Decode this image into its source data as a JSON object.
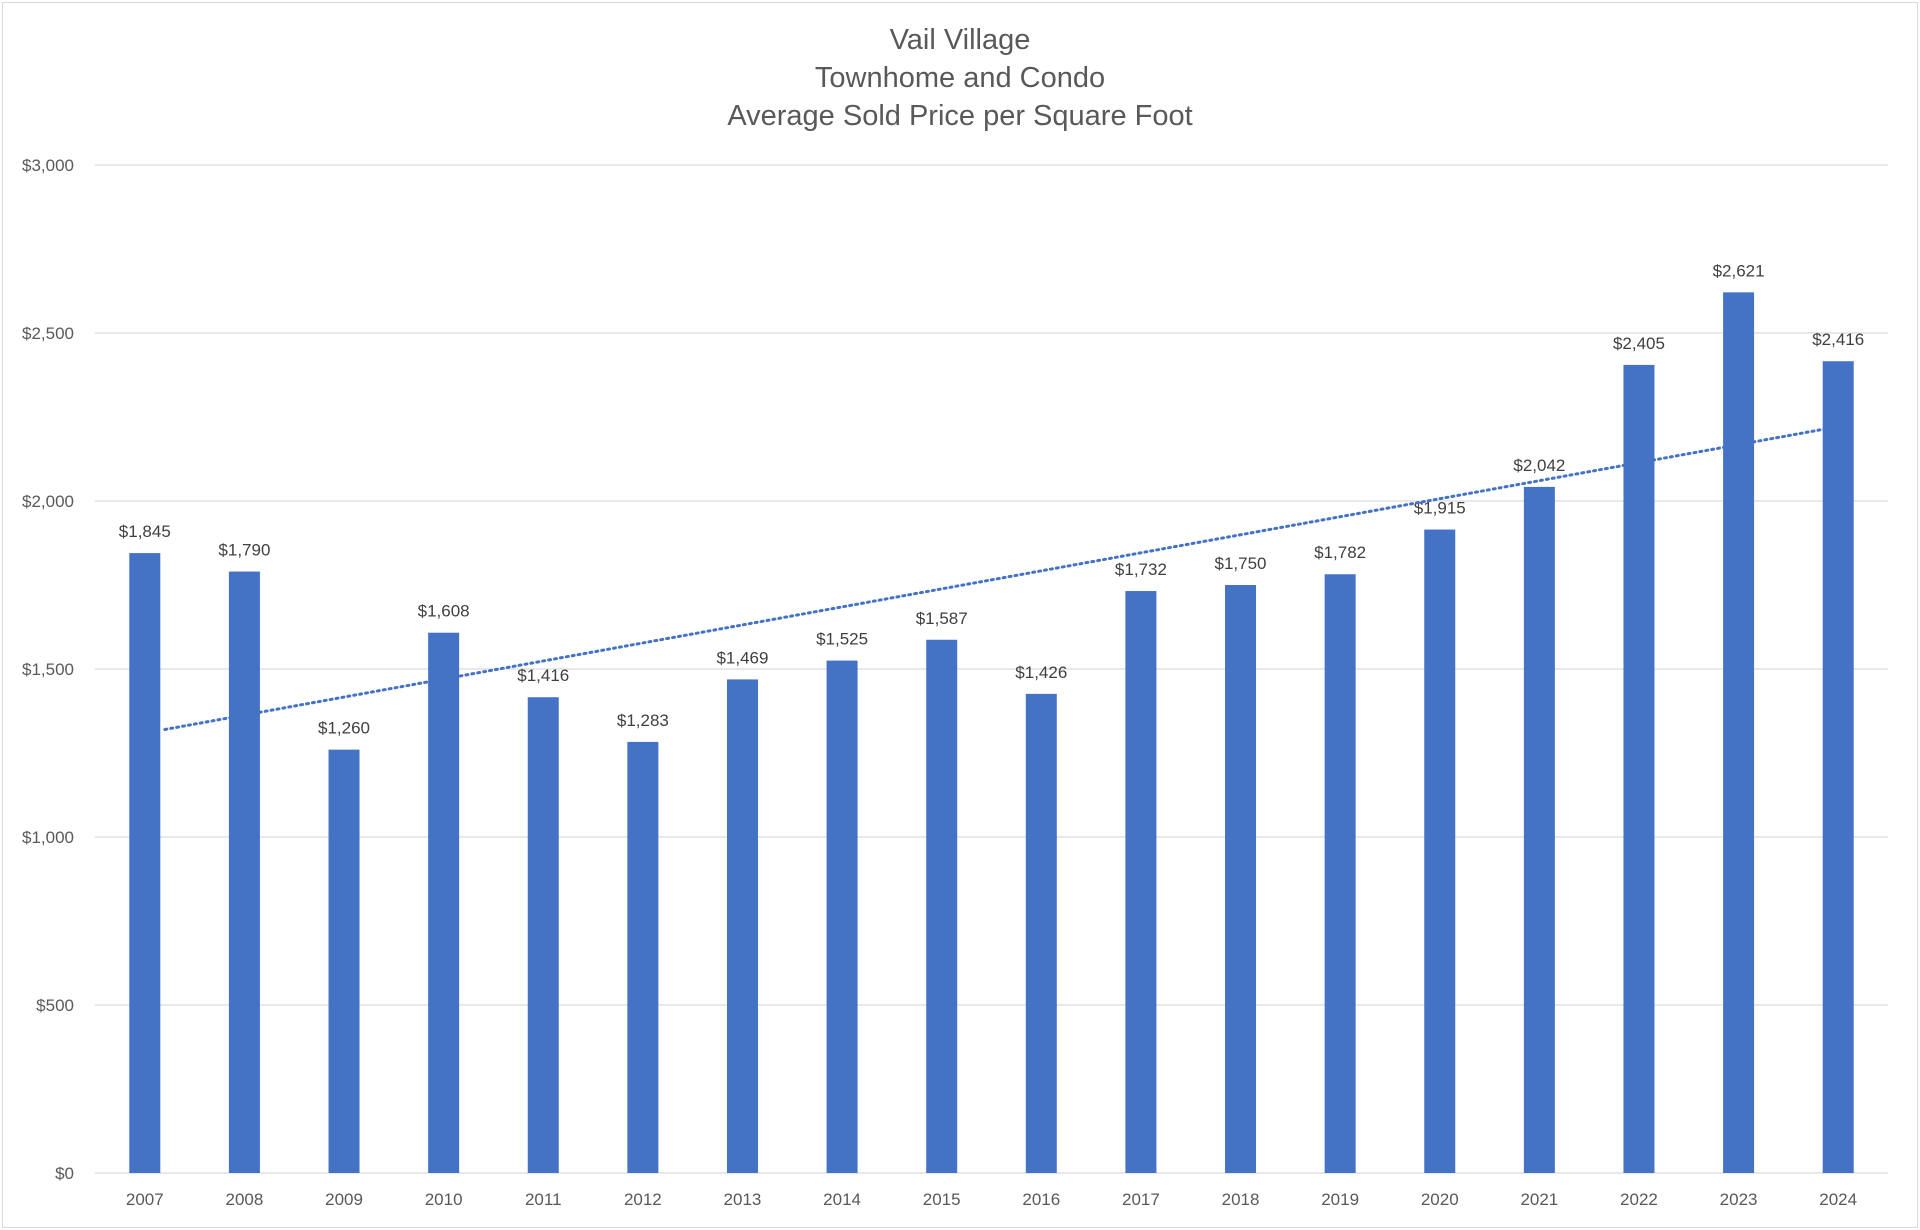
{
  "chart_data": {
    "type": "bar",
    "title_lines": [
      "Vail Village",
      "Townhome and Condo",
      "Average Sold Price per Square Foot"
    ],
    "xlabel": "",
    "ylabel": "",
    "categories": [
      "2007",
      "2008",
      "2009",
      "2010",
      "2011",
      "2012",
      "2013",
      "2014",
      "2015",
      "2016",
      "2017",
      "2018",
      "2019",
      "2020",
      "2021",
      "2022",
      "2023",
      "2024"
    ],
    "values": [
      1845,
      1790,
      1260,
      1608,
      1416,
      1283,
      1469,
      1525,
      1587,
      1426,
      1732,
      1750,
      1782,
      1915,
      2042,
      2405,
      2621,
      2416
    ],
    "data_labels": [
      "$1,845",
      "$1,790",
      "$1,260",
      "$1,608",
      "$1,416",
      "$1,283",
      "$1,469",
      "$1,525",
      "$1,587",
      "$1,426",
      "$1,732",
      "$1,750",
      "$1,782",
      "$1,915",
      "$2,042",
      "$2,405",
      "$2,621",
      "$2,416"
    ],
    "ylim": [
      0,
      3000
    ],
    "y_ticks": [
      0,
      500,
      1000,
      1500,
      2000,
      2500,
      3000
    ],
    "y_tick_labels": [
      "$0",
      "$500",
      "$1,000",
      "$1,500",
      "$2,000",
      "$2,500",
      "$3,000"
    ],
    "trendline": {
      "type": "linear",
      "style": "dotted",
      "start": 1320,
      "end": 2215
    },
    "grid": true,
    "legend": "none",
    "colors": {
      "bar": "#4472C4",
      "trendline": "#4472C4",
      "grid": "#d9d9d9",
      "text": "#595959"
    }
  }
}
